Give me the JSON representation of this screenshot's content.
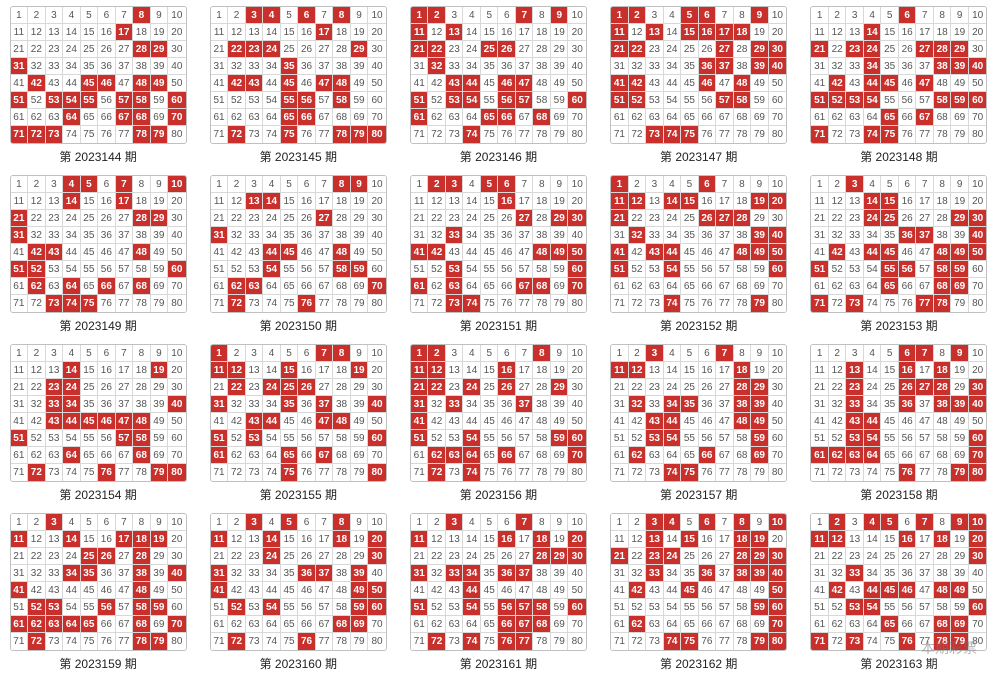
{
  "layout": {
    "rows": 4,
    "cols": 5,
    "cell_count": 80,
    "cells_per_row": 10
  },
  "colors": {
    "hot_bg": "#c9302c",
    "hot_fg": "#ffffff",
    "normal_fg": "#555555",
    "normal_bg": "#ffffff",
    "border": "#d8d8d8",
    "outer_border": "#c0c0c0",
    "caption": "#222222"
  },
  "caption_prefix": "第 ",
  "caption_suffix": " 期",
  "watermark": "本期彩票",
  "panels": [
    {
      "period": "2023144",
      "hot": [
        8,
        17,
        28,
        29,
        31,
        42,
        45,
        46,
        48,
        49,
        51,
        53,
        54,
        55,
        57,
        58,
        60,
        64,
        67,
        68,
        70,
        71,
        72,
        73,
        78,
        79
      ]
    },
    {
      "period": "2023145",
      "hot": [
        3,
        4,
        6,
        8,
        17,
        22,
        23,
        24,
        29,
        35,
        42,
        43,
        45,
        47,
        48,
        55,
        56,
        58,
        65,
        66,
        72,
        75,
        78,
        79,
        80
      ]
    },
    {
      "period": "2023146",
      "hot": [
        1,
        2,
        7,
        9,
        11,
        13,
        21,
        22,
        25,
        26,
        32,
        43,
        44,
        46,
        47,
        51,
        53,
        54,
        56,
        57,
        60,
        61,
        65,
        66,
        68,
        74
      ]
    },
    {
      "period": "2023147",
      "hot": [
        1,
        2,
        5,
        6,
        9,
        11,
        13,
        15,
        16,
        17,
        18,
        21,
        22,
        27,
        29,
        30,
        36,
        37,
        39,
        40,
        41,
        42,
        46,
        48,
        51,
        52,
        57,
        58,
        73,
        74,
        75
      ]
    },
    {
      "period": "2023148",
      "hot": [
        6,
        14,
        21,
        23,
        24,
        27,
        28,
        29,
        34,
        38,
        39,
        40,
        42,
        44,
        45,
        47,
        51,
        52,
        53,
        54,
        58,
        59,
        60,
        65,
        67,
        71,
        74,
        75
      ]
    },
    {
      "period": "2023149",
      "hot": [
        4,
        5,
        7,
        10,
        14,
        17,
        21,
        28,
        29,
        31,
        42,
        43,
        48,
        51,
        52,
        60,
        62,
        64,
        66,
        68,
        73,
        74,
        75
      ]
    },
    {
      "period": "2023150",
      "hot": [
        8,
        9,
        13,
        14,
        27,
        31,
        44,
        45,
        48,
        54,
        58,
        59,
        62,
        63,
        70,
        72,
        76
      ]
    },
    {
      "period": "2023151",
      "hot": [
        2,
        3,
        5,
        6,
        16,
        27,
        29,
        30,
        33,
        41,
        42,
        48,
        49,
        50,
        53,
        60,
        61,
        63,
        67,
        68,
        70,
        73,
        74
      ]
    },
    {
      "period": "2023152",
      "hot": [
        1,
        6,
        11,
        12,
        14,
        15,
        19,
        20,
        21,
        26,
        27,
        28,
        32,
        39,
        40,
        41,
        43,
        44,
        48,
        49,
        50,
        51,
        54,
        60,
        74,
        79
      ]
    },
    {
      "period": "2023153",
      "hot": [
        3,
        14,
        15,
        24,
        25,
        29,
        30,
        36,
        37,
        40,
        42,
        44,
        45,
        48,
        49,
        50,
        51,
        55,
        56,
        58,
        59,
        65,
        68,
        69,
        71,
        73,
        77,
        78
      ]
    },
    {
      "period": "2023154",
      "hot": [
        14,
        19,
        23,
        24,
        33,
        34,
        40,
        43,
        44,
        45,
        46,
        47,
        48,
        51,
        57,
        58,
        64,
        68,
        72,
        76,
        79,
        80
      ]
    },
    {
      "period": "2023155",
      "hot": [
        1,
        7,
        8,
        11,
        12,
        15,
        19,
        22,
        24,
        25,
        26,
        31,
        35,
        37,
        40,
        43,
        44,
        47,
        48,
        51,
        53,
        60,
        61,
        65,
        67,
        75,
        80
      ]
    },
    {
      "period": "2023156",
      "hot": [
        1,
        2,
        8,
        11,
        12,
        16,
        21,
        22,
        24,
        26,
        29,
        31,
        33,
        37,
        41,
        51,
        54,
        59,
        60,
        62,
        63,
        64,
        66,
        70,
        72,
        74
      ]
    },
    {
      "period": "2023157",
      "hot": [
        3,
        7,
        11,
        12,
        18,
        28,
        29,
        32,
        34,
        35,
        38,
        39,
        43,
        44,
        48,
        49,
        53,
        54,
        59,
        62,
        66,
        69,
        74,
        75
      ]
    },
    {
      "period": "2023158",
      "hot": [
        6,
        7,
        9,
        13,
        16,
        18,
        23,
        26,
        27,
        28,
        30,
        33,
        36,
        38,
        39,
        40,
        43,
        44,
        53,
        54,
        60,
        61,
        62,
        63,
        64,
        70,
        76,
        79,
        80
      ]
    },
    {
      "period": "2023159",
      "hot": [
        3,
        11,
        14,
        17,
        18,
        19,
        25,
        26,
        28,
        34,
        35,
        38,
        40,
        41,
        48,
        52,
        53,
        56,
        58,
        59,
        61,
        62,
        63,
        64,
        65,
        68,
        70,
        72,
        78,
        79
      ]
    },
    {
      "period": "2023160",
      "hot": [
        3,
        5,
        8,
        11,
        14,
        18,
        20,
        24,
        30,
        31,
        36,
        37,
        39,
        41,
        49,
        50,
        52,
        54,
        59,
        60,
        68,
        69,
        72,
        76
      ]
    },
    {
      "period": "2023161",
      "hot": [
        3,
        7,
        11,
        16,
        18,
        20,
        28,
        29,
        30,
        31,
        33,
        34,
        36,
        37,
        44,
        51,
        54,
        56,
        57,
        58,
        60,
        66,
        67,
        68,
        72,
        74,
        76,
        77
      ]
    },
    {
      "period": "2023162",
      "hot": [
        3,
        4,
        6,
        8,
        10,
        13,
        15,
        18,
        19,
        21,
        23,
        24,
        28,
        29,
        30,
        33,
        36,
        38,
        39,
        40,
        42,
        45,
        50,
        59,
        60,
        62,
        70,
        74,
        75,
        79,
        80
      ]
    },
    {
      "period": "2023163",
      "hot": [
        2,
        4,
        5,
        7,
        9,
        10,
        11,
        12,
        16,
        18,
        20,
        30,
        33,
        42,
        44,
        45,
        46,
        48,
        49,
        53,
        54,
        60,
        65,
        68,
        69,
        71,
        73,
        76,
        78,
        79
      ]
    }
  ]
}
